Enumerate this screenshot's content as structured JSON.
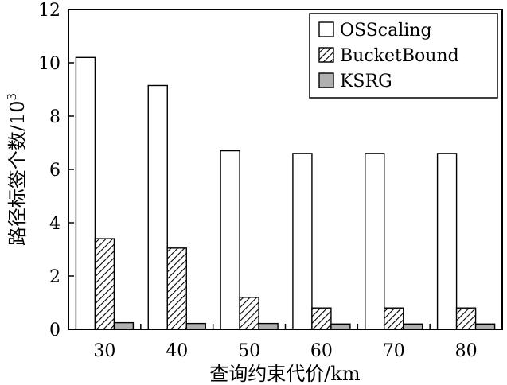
{
  "chart_data": {
    "type": "bar",
    "xlabel": "查询约束代价/km",
    "ylabel": "路径标签个数/10",
    "ylabel_superscript": "3",
    "categories": [
      "30",
      "40",
      "50",
      "60",
      "70",
      "80"
    ],
    "ylim": [
      0,
      12
    ],
    "yticks": [
      "0",
      "2",
      "4",
      "6",
      "8",
      "10",
      "12"
    ],
    "grid": false,
    "legend_position": "top-right",
    "series": [
      {
        "name": "OSScaling",
        "values": [
          10.2,
          9.15,
          6.7,
          6.6,
          6.6,
          6.6
        ],
        "fill": "#ffffff",
        "pattern": "none"
      },
      {
        "name": "BucketBound",
        "values": [
          3.4,
          3.05,
          1.2,
          0.8,
          0.8,
          0.8
        ],
        "fill": "#ffffff",
        "pattern": "hatch"
      },
      {
        "name": "KSRG",
        "values": [
          0.25,
          0.22,
          0.22,
          0.2,
          0.2,
          0.2
        ],
        "fill": "#b0b0b0",
        "pattern": "none"
      }
    ]
  }
}
